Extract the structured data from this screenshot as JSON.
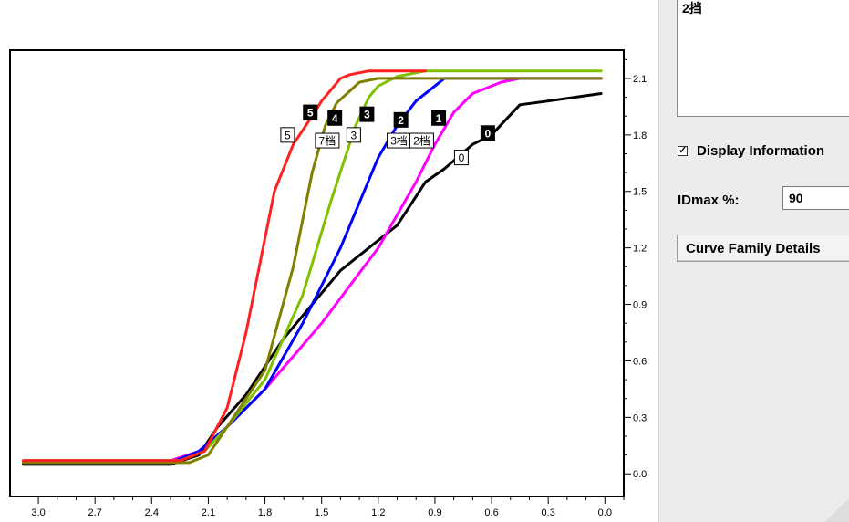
{
  "legend_panel": {
    "text": "2挡"
  },
  "display_info": {
    "checked": true,
    "checkmark": "✓",
    "label": "Display Information"
  },
  "idmax": {
    "label": "IDmax %:",
    "value": "90"
  },
  "curve_family_button": {
    "label": "Curve Family Details"
  },
  "chart_data": {
    "type": "line",
    "xlim": [
      3.15,
      -0.1
    ],
    "ylim": [
      -0.12,
      2.25
    ],
    "x_ticks": [
      3.0,
      2.7,
      2.4,
      2.1,
      1.8,
      1.5,
      1.2,
      0.9,
      0.6,
      0.3,
      0.0
    ],
    "x_tick_labels": [
      "3.0",
      "2.7",
      "2.4",
      "2.1",
      "1.8",
      "1.5",
      "1.2",
      "0.9",
      "0.6",
      "0.3",
      "0.0"
    ],
    "y_ticks": [
      0.0,
      0.3,
      0.6,
      0.9,
      1.2,
      1.5,
      1.8,
      2.1
    ],
    "y_tick_labels": [
      "0.0",
      "0.3",
      "0.6",
      "0.9",
      "1.2",
      "1.5",
      "1.8",
      "2.1"
    ],
    "grid": false,
    "series": [
      {
        "name": "0",
        "color": "#000000",
        "x": [
          3.08,
          2.3,
          2.15,
          2.05,
          1.9,
          1.7,
          1.4,
          1.1,
          0.95,
          0.85,
          0.7,
          0.6,
          0.45,
          0.3,
          0.02
        ],
        "y": [
          0.05,
          0.05,
          0.1,
          0.25,
          0.42,
          0.72,
          1.08,
          1.32,
          1.55,
          1.62,
          1.75,
          1.8,
          1.96,
          1.98,
          2.02
        ]
      },
      {
        "name": "1",
        "color": "#ff00ff",
        "x": [
          3.08,
          2.3,
          2.15,
          2.0,
          1.8,
          1.5,
          1.2,
          1.0,
          0.9,
          0.8,
          0.7,
          0.55,
          0.45,
          0.02
        ],
        "y": [
          0.07,
          0.07,
          0.12,
          0.25,
          0.45,
          0.8,
          1.2,
          1.55,
          1.75,
          1.92,
          2.02,
          2.08,
          2.1,
          2.1
        ]
      },
      {
        "name": "2",
        "color": "#0000ff",
        "x": [
          3.08,
          2.3,
          2.15,
          2.0,
          1.8,
          1.6,
          1.4,
          1.2,
          1.1,
          1.0,
          0.9,
          0.85,
          0.02
        ],
        "y": [
          0.06,
          0.06,
          0.12,
          0.25,
          0.45,
          0.8,
          1.2,
          1.68,
          1.85,
          1.98,
          2.06,
          2.1,
          2.1
        ]
      },
      {
        "name": "3",
        "color": "#80c000",
        "x": [
          3.08,
          2.25,
          2.12,
          2.0,
          1.8,
          1.6,
          1.45,
          1.32,
          1.25,
          1.2,
          1.1,
          0.95,
          0.02
        ],
        "y": [
          0.07,
          0.07,
          0.12,
          0.25,
          0.5,
          0.95,
          1.45,
          1.85,
          2.0,
          2.06,
          2.11,
          2.14,
          2.14
        ]
      },
      {
        "name": "4",
        "color": "#808000",
        "x": [
          3.08,
          2.2,
          2.1,
          2.0,
          1.8,
          1.65,
          1.55,
          1.48,
          1.42,
          1.3,
          1.2,
          0.02
        ],
        "y": [
          0.06,
          0.06,
          0.1,
          0.25,
          0.55,
          1.1,
          1.6,
          1.85,
          1.97,
          2.08,
          2.1,
          2.1
        ]
      },
      {
        "name": "5",
        "color": "#ff2020",
        "x": [
          3.08,
          2.25,
          2.12,
          2.0,
          1.9,
          1.75,
          1.65,
          1.55,
          1.5,
          1.4,
          1.35,
          1.25,
          0.95
        ],
        "y": [
          0.07,
          0.07,
          0.12,
          0.35,
          0.75,
          1.5,
          1.75,
          1.9,
          1.98,
          2.1,
          2.12,
          2.14,
          2.14
        ]
      }
    ],
    "annotations": [
      {
        "text": "5",
        "style": "dark",
        "x": 1.56,
        "y": 1.92
      },
      {
        "text": "4",
        "style": "dark",
        "x": 1.43,
        "y": 1.89
      },
      {
        "text": "3",
        "style": "dark",
        "x": 1.26,
        "y": 1.91
      },
      {
        "text": "2",
        "style": "dark",
        "x": 1.08,
        "y": 1.88
      },
      {
        "text": "1",
        "style": "dark",
        "x": 0.88,
        "y": 1.89
      },
      {
        "text": "0",
        "style": "dark",
        "x": 0.62,
        "y": 1.81
      },
      {
        "text": "5",
        "style": "light",
        "x": 1.68,
        "y": 1.8
      },
      {
        "text": "7档",
        "style": "light",
        "x": 1.47,
        "y": 1.77
      },
      {
        "text": "3",
        "style": "light",
        "x": 1.33,
        "y": 1.8
      },
      {
        "text": "3档",
        "style": "light",
        "x": 1.09,
        "y": 1.77
      },
      {
        "text": "2档",
        "style": "light",
        "x": 0.97,
        "y": 1.77
      },
      {
        "text": "0",
        "style": "light",
        "x": 0.76,
        "y": 1.68
      }
    ]
  }
}
